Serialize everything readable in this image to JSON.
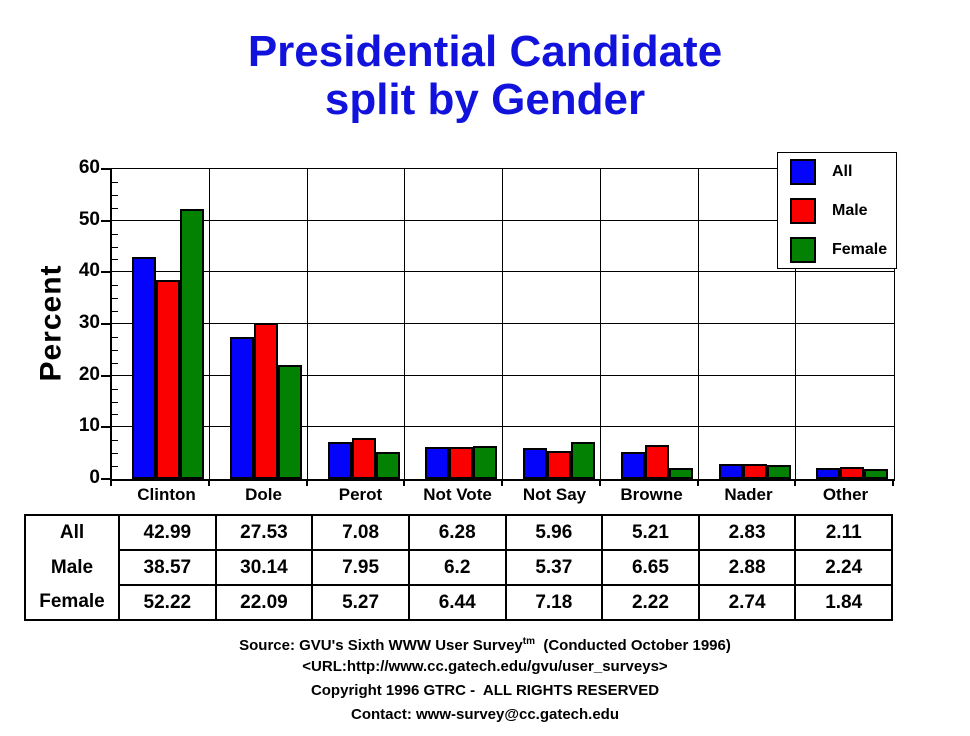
{
  "title": {
    "line1": "Presidential Candidate",
    "line2": "split by Gender"
  },
  "colors": {
    "title": "#1212dd",
    "all": "#0404fa",
    "male": "#fb0000",
    "female": "#038103",
    "grid": "#000000"
  },
  "chart_data": {
    "type": "bar",
    "title": "Presidential Candidate split by Gender",
    "categories": [
      "Clinton",
      "Dole",
      "Perot",
      "Not Vote",
      "Not Say",
      "Browne",
      "Nader",
      "Other"
    ],
    "series": [
      {
        "name": "All",
        "color": "#0404fa",
        "values": [
          42.99,
          27.53,
          7.08,
          6.28,
          5.96,
          5.21,
          2.83,
          2.11
        ]
      },
      {
        "name": "Male",
        "color": "#fb0000",
        "values": [
          38.57,
          30.14,
          7.95,
          6.2,
          5.37,
          6.65,
          2.88,
          2.24
        ]
      },
      {
        "name": "Female",
        "color": "#038103",
        "values": [
          52.22,
          22.09,
          5.27,
          6.44,
          7.18,
          2.22,
          2.74,
          1.84
        ]
      }
    ],
    "xlabel": "",
    "ylabel": "Percent",
    "ylim": [
      0,
      60
    ],
    "yticks": [
      0,
      10,
      20,
      30,
      40,
      50,
      60
    ],
    "minor_tick_step": 2.5,
    "grid": true,
    "legend_position": "top-right",
    "legend_entries": [
      "All",
      "Male",
      "Female"
    ]
  },
  "table": {
    "row_headers": [
      "All",
      "Male",
      "Female"
    ],
    "columns": [
      "Clinton",
      "Dole",
      "Perot",
      "Not Vote",
      "Not Say",
      "Browne",
      "Nader",
      "Other"
    ],
    "rows": [
      [
        "42.99",
        "27.53",
        "7.08",
        "6.28",
        "5.96",
        "5.21",
        "2.83",
        "2.11"
      ],
      [
        "38.57",
        "30.14",
        "7.95",
        "6.2",
        "5.37",
        "6.65",
        "2.88",
        "2.24"
      ],
      [
        "52.22",
        "22.09",
        "5.27",
        "6.44",
        "7.18",
        "2.22",
        "2.74",
        "1.84"
      ]
    ]
  },
  "footer": {
    "source_prefix": "Source: GVU's Sixth WWW User Survey",
    "source_sup": "tm",
    "source_suffix": "  (Conducted October 1996)",
    "url": "<URL:http://www.cc.gatech.edu/gvu/user_surveys>",
    "copyright": "Copyright 1996 GTRC -  ALL RIGHTS RESERVED",
    "contact": "Contact: www-survey@cc.gatech.edu"
  }
}
